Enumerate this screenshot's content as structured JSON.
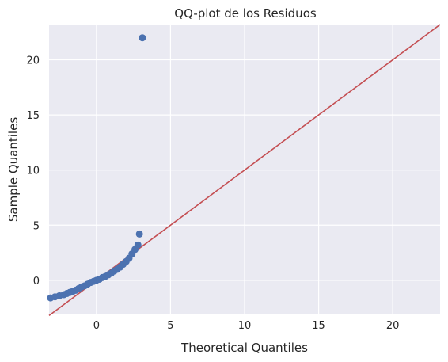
{
  "chart_data": {
    "type": "scatter",
    "title": "QQ-plot de los Residuos",
    "xlabel": "Theoretical Quantiles",
    "ylabel": "Sample Quantiles",
    "xlim": [
      -3.2,
      23.2
    ],
    "ylim": [
      -3.1,
      23.2
    ],
    "x_ticks": [
      0,
      5,
      10,
      15,
      20
    ],
    "y_ticks": [
      0,
      5,
      10,
      15,
      20
    ],
    "grid": true,
    "colors": {
      "background": "#eaeaf2",
      "grid": "#ffffff",
      "points": "#4c72b0",
      "reference_line": "#c44e52"
    },
    "series": [
      {
        "type": "scatter",
        "x": [
          -3.1,
          -2.8,
          -2.5,
          -2.2,
          -2.0,
          -1.8,
          -1.6,
          -1.4,
          -1.2,
          -1.0,
          -0.8,
          -0.6,
          -0.4,
          -0.2,
          0.0,
          0.2,
          0.4,
          0.6,
          0.8,
          1.0,
          1.2,
          1.4,
          1.6,
          1.8,
          2.0,
          2.2,
          2.4,
          2.6,
          2.8,
          2.9,
          3.1
        ],
        "y": [
          -1.6,
          -1.5,
          -1.4,
          -1.3,
          -1.2,
          -1.1,
          -1.0,
          -0.9,
          -0.75,
          -0.6,
          -0.5,
          -0.35,
          -0.2,
          -0.1,
          0.0,
          0.1,
          0.25,
          0.35,
          0.5,
          0.65,
          0.85,
          1.0,
          1.2,
          1.45,
          1.7,
          2.0,
          2.4,
          2.8,
          3.2,
          4.2,
          22.0
        ]
      },
      {
        "type": "line",
        "x": [
          -3.2,
          23.2
        ],
        "y": [
          -3.2,
          23.2
        ]
      }
    ]
  }
}
